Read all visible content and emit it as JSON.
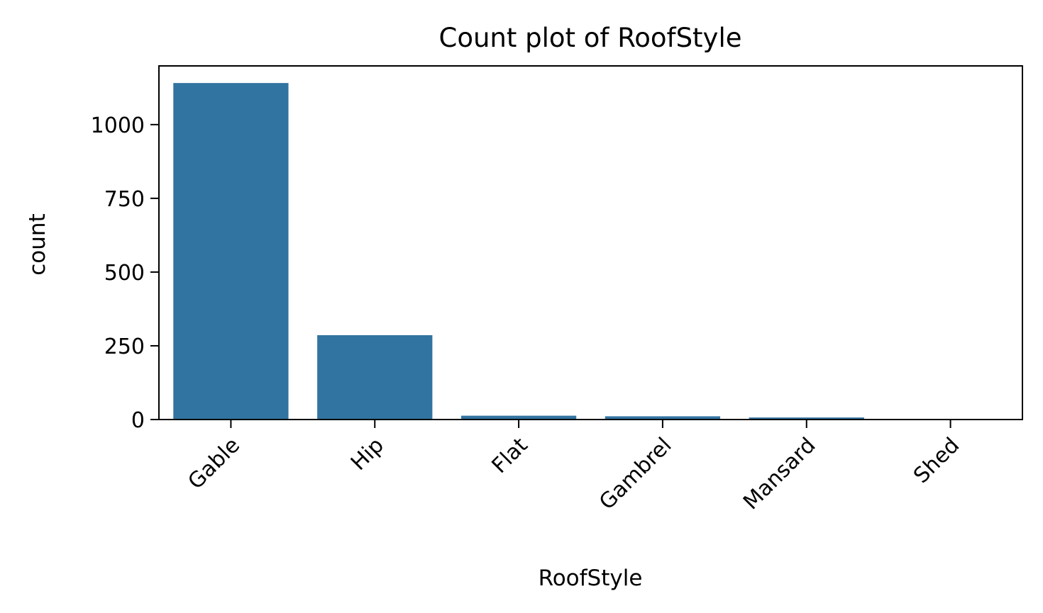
{
  "chart_data": {
    "type": "bar",
    "title": "Count plot of RoofStyle",
    "xlabel": "RoofStyle",
    "ylabel": "count",
    "categories": [
      "Gable",
      "Hip",
      "Flat",
      "Gambrel",
      "Mansard",
      "Shed"
    ],
    "values": [
      1141,
      286,
      13,
      11,
      7,
      2
    ],
    "ylim": [
      0,
      1199
    ],
    "yticks": [
      0,
      250,
      500,
      750,
      1000
    ],
    "ytick_labels": [
      "0",
      "250",
      "500",
      "750",
      "1000"
    ],
    "xtick_rotation": 45,
    "grid": false,
    "bar_color": "#3274a1"
  }
}
